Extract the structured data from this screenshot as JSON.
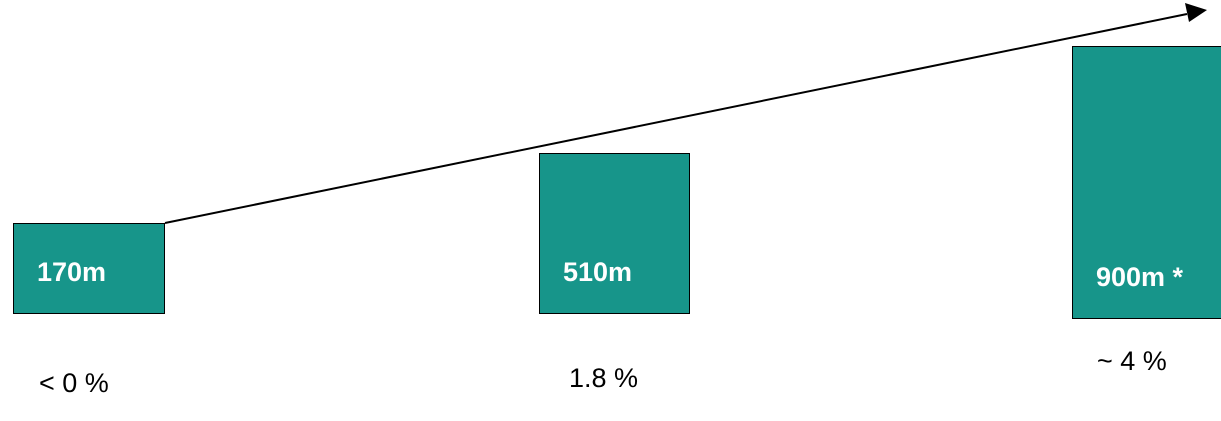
{
  "colors": {
    "bar_fill": "#17958a",
    "bar_border": "#000000",
    "label_text": "#ffffff",
    "arrow": "#000000"
  },
  "bars": [
    {
      "label": "170m",
      "value": 170,
      "percentage": "< 0 %"
    },
    {
      "label": "510m",
      "value": 510,
      "percentage": "1.8 %"
    },
    {
      "label": "900m *",
      "value": 900,
      "percentage": "~ 4 %"
    }
  ],
  "trend_arrow": {
    "direction": "up-right",
    "icon": "trend-arrow-icon"
  }
}
